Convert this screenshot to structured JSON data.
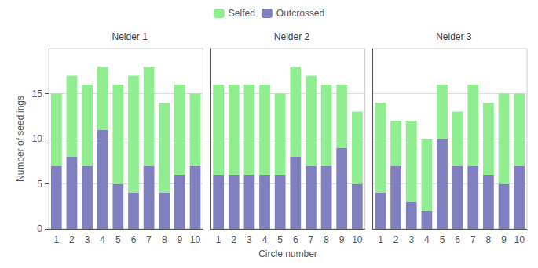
{
  "chart_data": [
    {
      "type": "bar",
      "title": "Nelder 1",
      "ylabel": "Number of seedlings",
      "categories": [
        "1",
        "2",
        "3",
        "4",
        "5",
        "6",
        "7",
        "8",
        "9",
        "10"
      ],
      "series": [
        {
          "name": "Outcrossed",
          "color": "#8080c0",
          "values": [
            7,
            8,
            7,
            11,
            5,
            4,
            7,
            4,
            6,
            7
          ]
        },
        {
          "name": "Selfed",
          "color": "#90EE90",
          "values": [
            8,
            9,
            9,
            7,
            11,
            13,
            11,
            10,
            10,
            8
          ]
        }
      ],
      "stacked": true,
      "ylim": [
        0,
        20
      ],
      "yticks": [
        0,
        5,
        10,
        15
      ],
      "grid": true,
      "legend": "top"
    },
    {
      "type": "bar",
      "title": "Nelder 2",
      "xlabel": "Circle number",
      "categories": [
        "1",
        "2",
        "3",
        "4",
        "5",
        "6",
        "7",
        "8",
        "9",
        "10"
      ],
      "series": [
        {
          "name": "Outcrossed",
          "color": "#8080c0",
          "values": [
            6,
            6,
            6,
            6,
            6,
            8,
            7,
            7,
            9,
            5
          ]
        },
        {
          "name": "Selfed",
          "color": "#90EE90",
          "values": [
            10,
            10,
            10,
            10,
            9,
            10,
            10,
            9,
            7,
            8
          ]
        }
      ],
      "stacked": true,
      "ylim": [
        0,
        20
      ],
      "yticks": [
        0,
        5,
        10,
        15
      ],
      "grid": true,
      "tick_labels": "x"
    },
    {
      "type": "bar",
      "title": "Nelder 3",
      "categories": [
        "1",
        "2",
        "3",
        "4",
        "5",
        "6",
        "7",
        "8",
        "9",
        "10"
      ],
      "series": [
        {
          "name": "Outcrossed",
          "color": "#8080c0",
          "values": [
            4,
            7,
            3,
            2,
            10,
            7,
            7,
            6,
            5,
            7
          ]
        },
        {
          "name": "Selfed",
          "color": "#90EE90",
          "values": [
            10,
            5,
            9,
            8,
            6,
            6,
            9,
            8,
            10,
            8
          ]
        }
      ],
      "stacked": true,
      "ylim": [
        0,
        20
      ],
      "yticks": [
        0,
        5,
        10,
        15
      ],
      "grid": true,
      "tick_labels": "x"
    }
  ]
}
